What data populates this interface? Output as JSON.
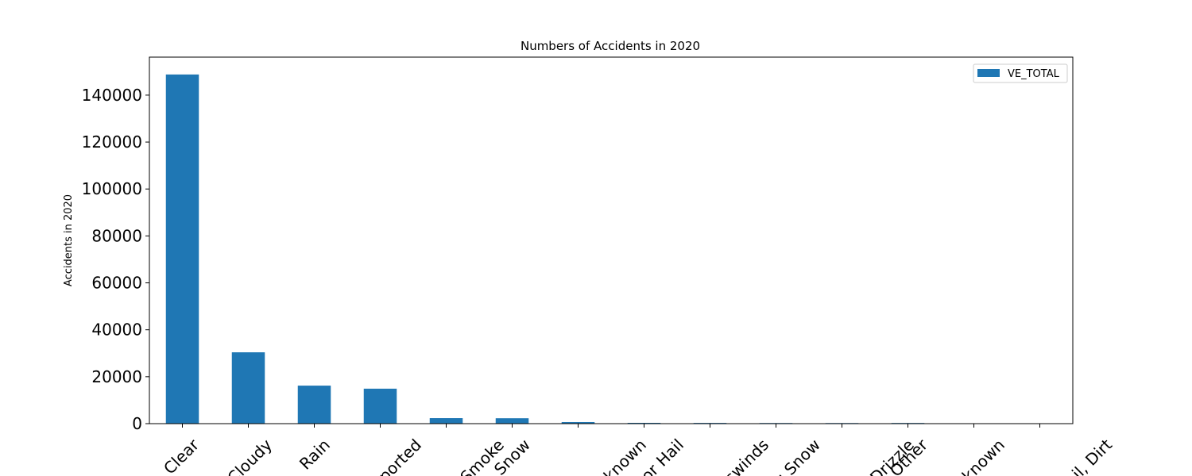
{
  "chart_data": {
    "type": "bar",
    "title": "Numbers of Accidents in 2020",
    "y_label": "Accidents in 2020",
    "categories": [
      "Clear",
      "Cloudy",
      "Rain",
      "ported",
      "Smoke",
      "Snow",
      "nknown",
      "or Hail",
      "swinds",
      "g Snow",
      "Drizzle",
      "Other",
      "nknown",
      "il, Dirt"
    ],
    "series": [
      {
        "name": "VE_TOTAL",
        "color": "#1f77b4",
        "values": [
          148800,
          30400,
          16200,
          14900,
          2350,
          2300,
          680,
          340,
          300,
          260,
          250,
          280,
          60,
          30
        ]
      }
    ],
    "ylim": [
      0,
      156200
    ],
    "yticks": [
      0,
      20000,
      40000,
      60000,
      80000,
      100000,
      120000,
      140000
    ],
    "legend": "upper right"
  }
}
